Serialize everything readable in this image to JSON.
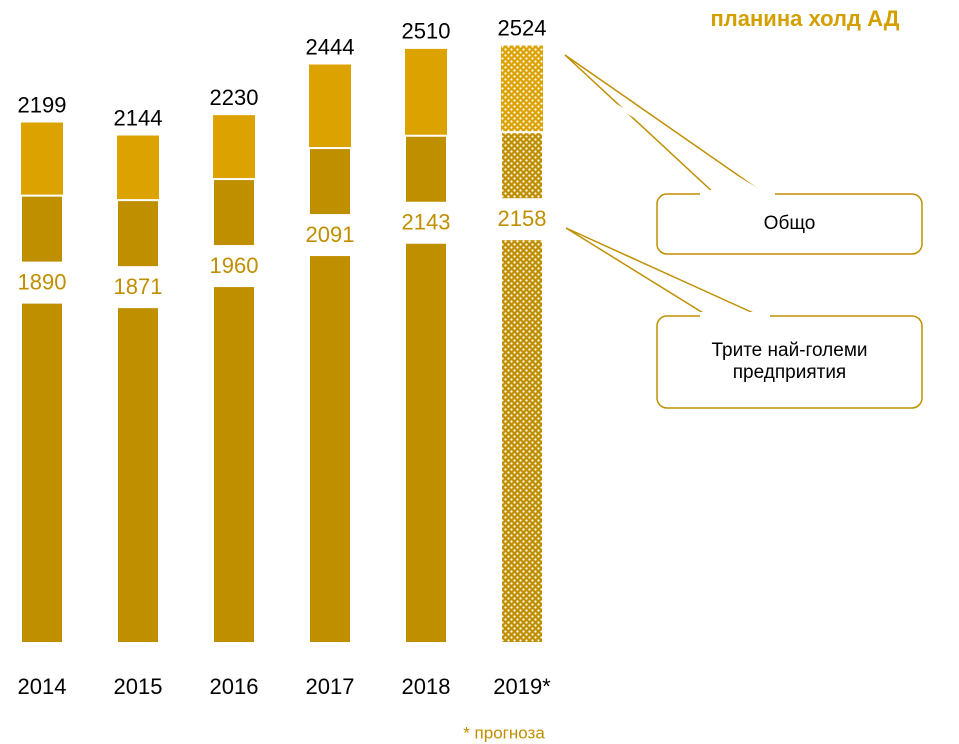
{
  "chart_data": {
    "type": "bar",
    "title": "планина холд АД",
    "categories": [
      "2014",
      "2015",
      "2016",
      "2017",
      "2018",
      "2019*"
    ],
    "series": [
      {
        "name": "Общо",
        "color": "#dca200",
        "values": [
          2199,
          2144,
          2230,
          2444,
          2510,
          2524
        ]
      },
      {
        "name": "Трите най-големи предприятия",
        "color": "#c08f00",
        "values": [
          1890,
          1871,
          1960,
          2091,
          2143,
          2158
        ]
      }
    ],
    "dotted": [
      false,
      false,
      false,
      false,
      false,
      true
    ],
    "ylim": [
      0,
      2700
    ],
    "footnote": "* прогноза"
  }
}
